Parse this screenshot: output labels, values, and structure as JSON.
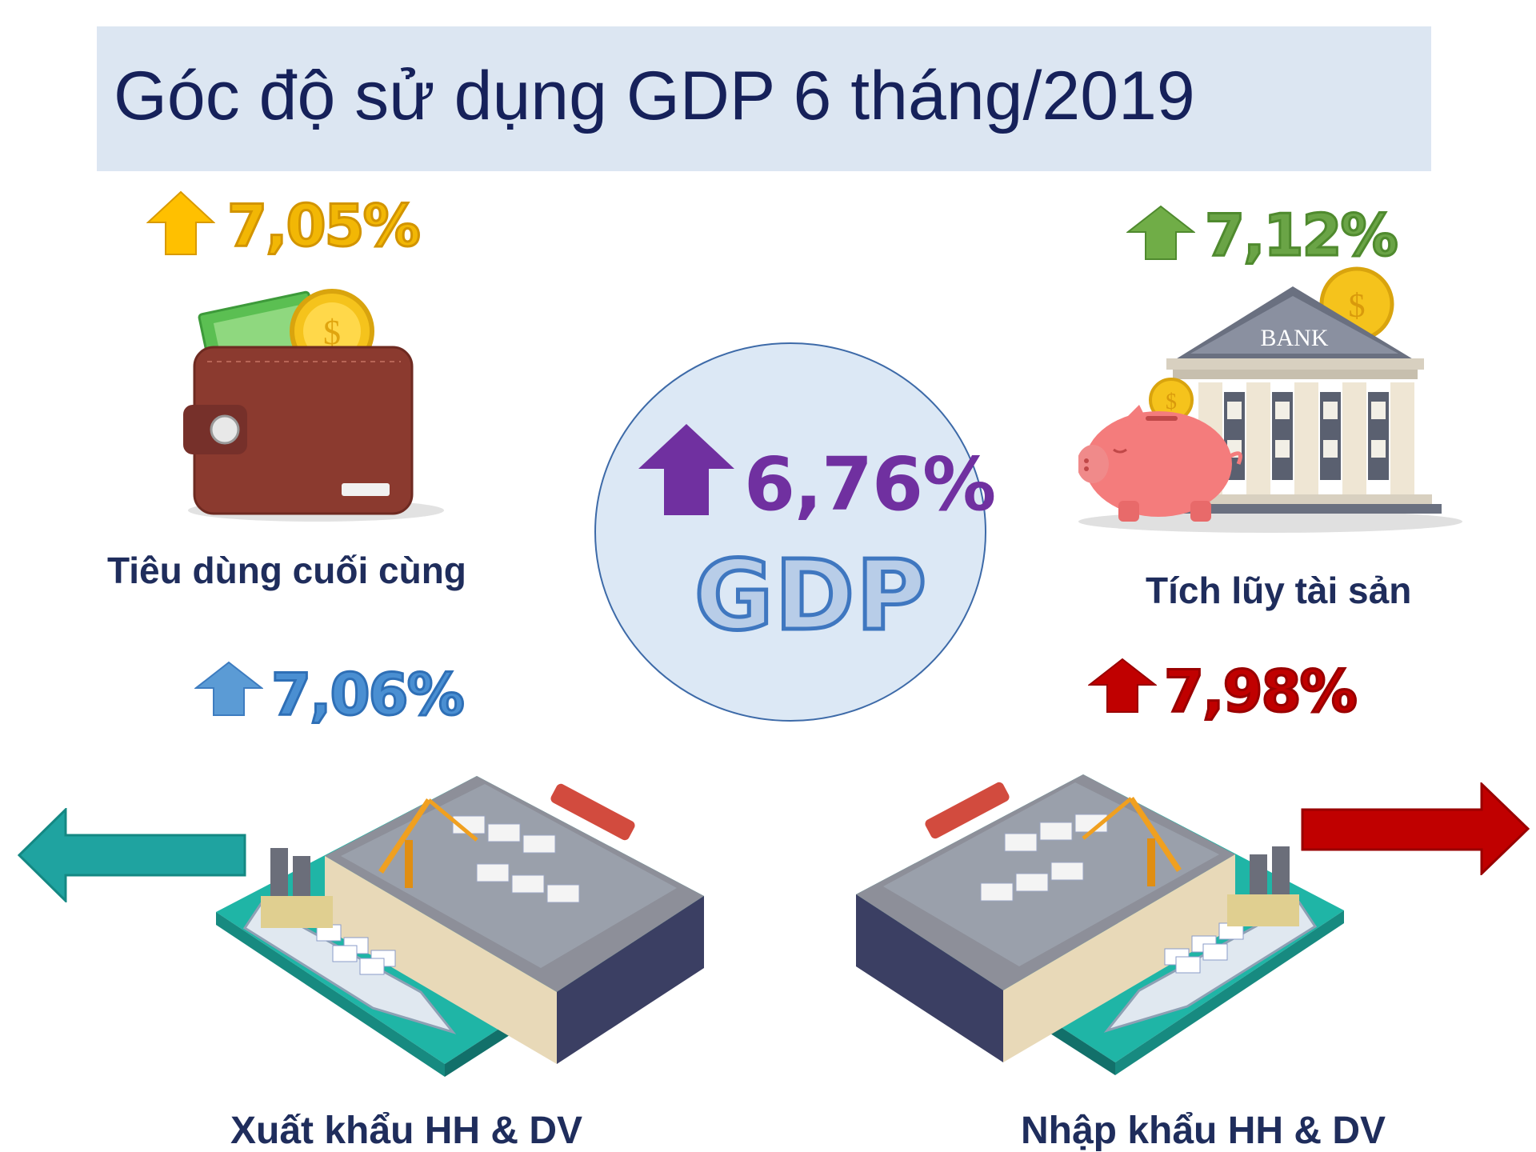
{
  "title": "Góc độ sử dụng GDP 6 tháng/2019",
  "center": {
    "value": "6,76%",
    "label": "GDP",
    "arrow_icon": "up-arrow-icon",
    "color": "#7030a0"
  },
  "items": [
    {
      "id": "consumption",
      "value": "7,05%",
      "label": "Tiêu dùng cuối cùng",
      "color": "#f2b705",
      "icon": "wallet-icon"
    },
    {
      "id": "accumulation",
      "value": "7,12%",
      "label": "Tích lũy tài sản",
      "color": "#6aa446",
      "icon": "bank-icon",
      "bank_sign": "BANK"
    },
    {
      "id": "export",
      "value": "7,06%",
      "label": "Xuất khẩu HH & DV",
      "color": "#4a8fd2",
      "icon": "port-icon"
    },
    {
      "id": "import",
      "value": "7,98%",
      "label": "Nhập khẩu HH & DV",
      "color": "#c00000",
      "icon": "port-icon"
    }
  ],
  "colors": {
    "title_bg": "#dce6f2",
    "title_text": "#16215a",
    "export_arrow": "#1fa3a0",
    "import_arrow": "#c00000"
  }
}
